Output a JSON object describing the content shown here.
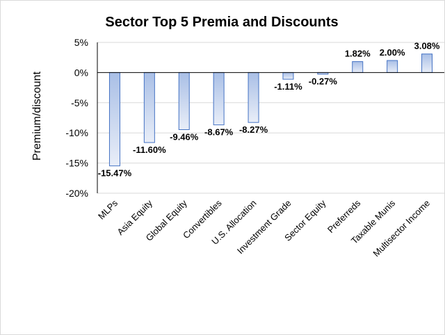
{
  "chart_data": {
    "type": "bar",
    "title": "Sector Top 5 Premia and Discounts",
    "xlabel": "",
    "ylabel": "Premium/discount",
    "categories": [
      "MLPs",
      "Asia Equity",
      "Global Equity",
      "Convertibles",
      "U.S. Allocation",
      "Investment Grade",
      "Sector Equity",
      "Preferreds",
      "Taxable Munis",
      "Multisector Income"
    ],
    "values": [
      -15.47,
      -11.6,
      -9.46,
      -8.67,
      -8.27,
      -1.11,
      -0.27,
      1.82,
      2.0,
      3.08
    ],
    "data_labels": [
      "-15.47%",
      "-11.60%",
      "-9.46%",
      "-8.67%",
      "-8.27%",
      "-1.11%",
      "-0.27%",
      "1.82%",
      "2.00%",
      "3.08%"
    ],
    "ylim": [
      -20,
      5
    ],
    "yticks": [
      5,
      0,
      -5,
      -10,
      -15,
      -20
    ],
    "ytick_labels": [
      "5%",
      "0%",
      "-5%",
      "-10%",
      "-15%",
      "-20%"
    ],
    "grid": true,
    "legend": "none",
    "colors": {
      "bar_fill_top": "#a9bfe6",
      "bar_fill_bottom": "#e9eef8",
      "bar_stroke": "#4472c4"
    }
  }
}
